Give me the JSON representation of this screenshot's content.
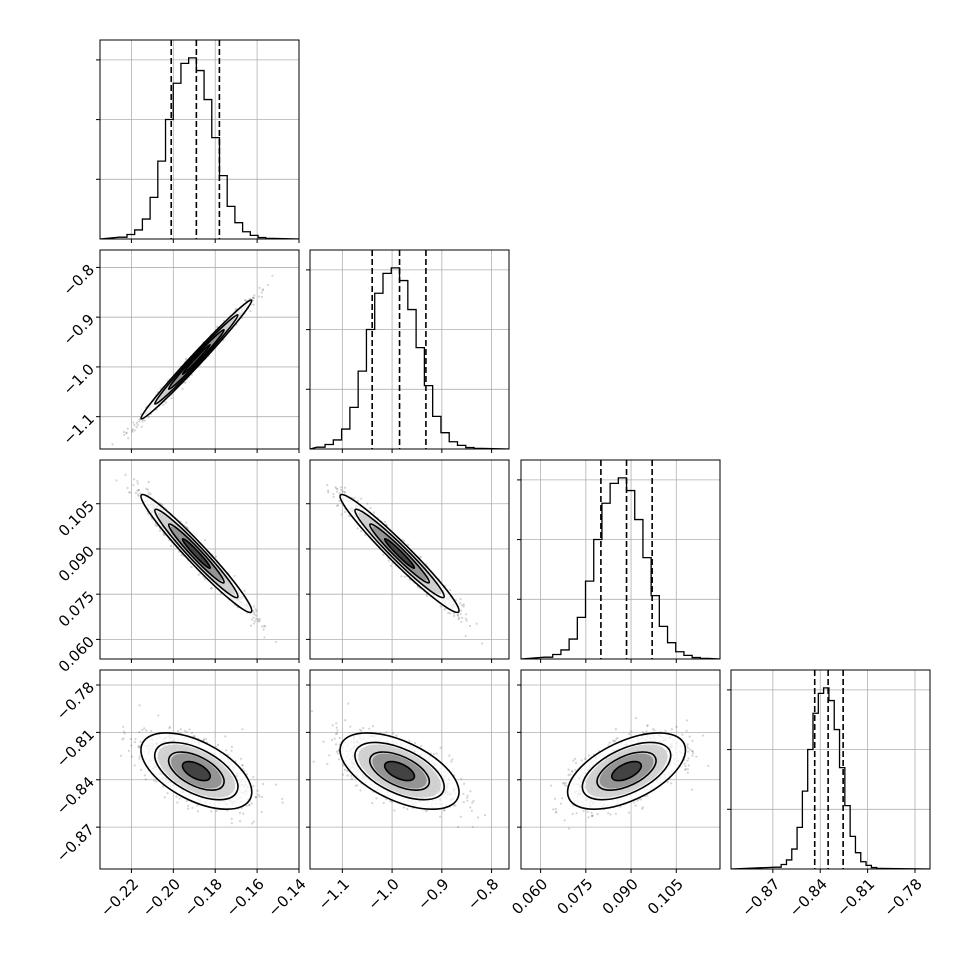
{
  "chart_data": {
    "type": "corner",
    "grid": true,
    "parameters": [
      {
        "mean": -0.189,
        "sd": 0.0115,
        "q16": -0.201,
        "q50": -0.189,
        "q84": -0.178,
        "range": [
          -0.235,
          -0.14
        ],
        "ticks": [
          -0.22,
          -0.2,
          -0.18,
          -0.16,
          -0.14
        ],
        "tick_labels": [
          "−0.22",
          "−0.20",
          "−0.18",
          "−0.16",
          "−0.14"
        ]
      },
      {
        "mean": -0.985,
        "sd": 0.052,
        "q16": -1.04,
        "q50": -0.985,
        "q84": -0.932,
        "range": [
          -1.165,
          -0.765
        ],
        "ticks": [
          -1.1,
          -1.0,
          -0.9,
          -0.8
        ],
        "tick_labels": [
          "−1.1",
          "−1.0",
          "−0.9",
          "−0.8"
        ]
      },
      {
        "mean": 0.0885,
        "sd": 0.0085,
        "q16": 0.08,
        "q50": 0.0885,
        "q84": 0.097,
        "range": [
          0.0535,
          0.1195
        ],
        "ticks": [
          0.06,
          0.075,
          0.09,
          0.105
        ],
        "tick_labels": [
          "0.060",
          "0.075",
          "0.090",
          "0.105"
        ]
      },
      {
        "mean": -0.8345,
        "sd": 0.0105,
        "q16": -0.8435,
        "q50": -0.835,
        "q84": -0.8255,
        "range": [
          -0.8965,
          -0.7705
        ],
        "ticks": [
          -0.87,
          -0.84,
          -0.81,
          -0.78
        ],
        "tick_labels": [
          "−0.87",
          "−0.84",
          "−0.81",
          "−0.78"
        ]
      }
    ],
    "correlations": [
      [
        1.0,
        0.99,
        -0.97,
        -0.55
      ],
      [
        0.99,
        1.0,
        -0.97,
        -0.55
      ],
      [
        -0.97,
        -0.97,
        1.0,
        0.55
      ],
      [
        -0.55,
        -0.55,
        0.55,
        1.0
      ]
    ],
    "contour_levels_sigma": [
      0.5,
      1.0,
      1.5,
      2.0
    ],
    "hist_relative_heights": [
      0.01,
      0.025,
      0.05,
      0.11,
      0.23,
      0.43,
      0.66,
      0.86,
      0.97,
      1.0,
      0.93,
      0.77,
      0.56,
      0.35,
      0.18,
      0.09,
      0.04,
      0.02,
      0.008,
      0.003
    ]
  }
}
